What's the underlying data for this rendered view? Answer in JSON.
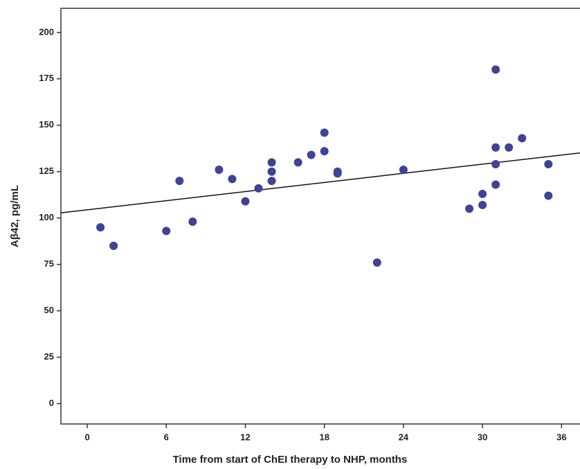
{
  "chart_data": {
    "type": "scatter",
    "xlabel": "Time from start of ChEI therapy to NHP, months",
    "ylabel": "Aβ42, pg/mL",
    "x": [
      1,
      2,
      6,
      7,
      8,
      10,
      11,
      12,
      13,
      14,
      14,
      14,
      16,
      17,
      18,
      18,
      19,
      19,
      22,
      24,
      29,
      30,
      30,
      31,
      31,
      31,
      31,
      32,
      33,
      35,
      35
    ],
    "series": [
      {
        "color": "#3d4395",
        "values": [
          95,
          85,
          93,
          120,
          98,
          126,
          121,
          109,
          116,
          120,
          125,
          130,
          130,
          134,
          136,
          146,
          125,
          124,
          76,
          126,
          105,
          107,
          113,
          138,
          129,
          118,
          180,
          138,
          143,
          129,
          112
        ]
      }
    ],
    "regression_line": {
      "intercept": 104.4,
      "slope": 0.82,
      "color": "#111111"
    },
    "xlim": [
      -2,
      37.4
    ],
    "ylim": [
      -11,
      213
    ],
    "xticks": [
      0,
      6,
      12,
      18,
      24,
      30,
      36
    ],
    "yticks": [
      0,
      25,
      50,
      75,
      100,
      125,
      150,
      175,
      200
    ]
  }
}
